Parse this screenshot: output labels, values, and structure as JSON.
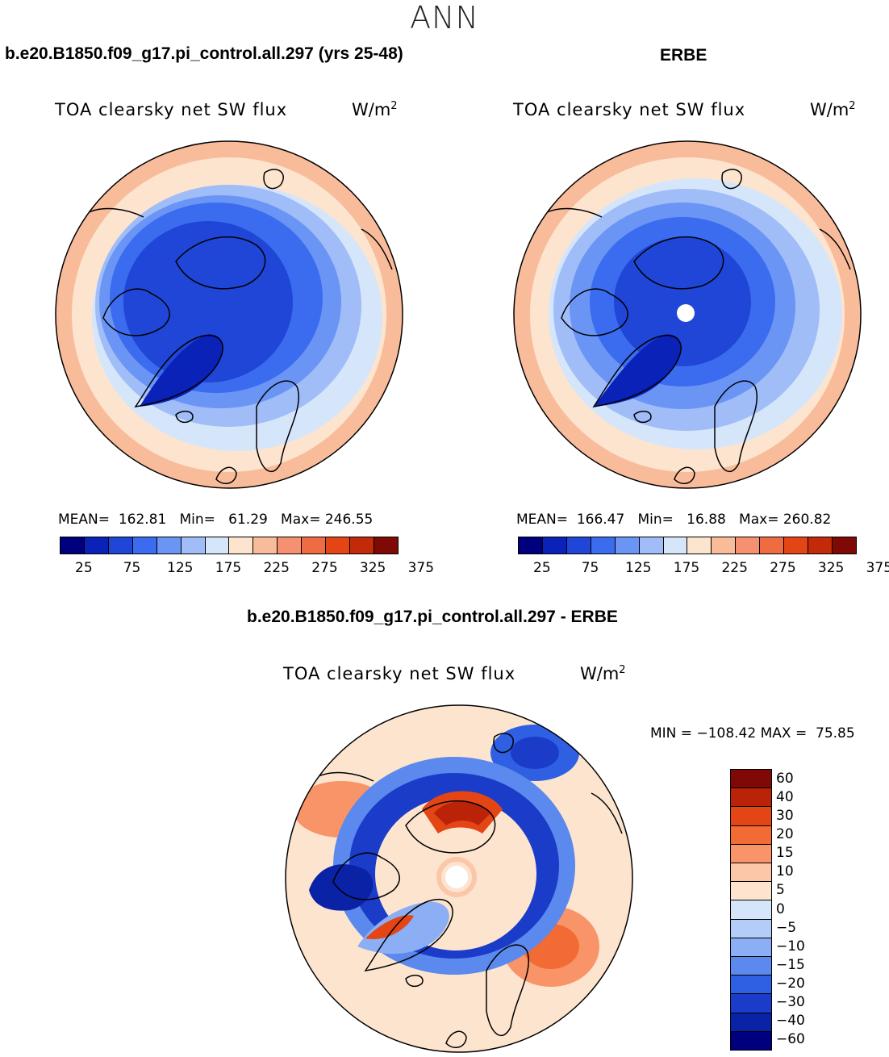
{
  "season": "ANN",
  "panels": {
    "model": {
      "case_title": "b.e20.B1850.f09_g17.pi_control.all.297 (yrs 25-48)",
      "variable": "TOA clearsky net SW flux",
      "units": "W/m",
      "units_exp": "2",
      "mean_label": "MEAN=",
      "mean": "162.81",
      "min_label": "Min=",
      "min": "61.29",
      "max_label": "Max=",
      "max": "246.55"
    },
    "obs": {
      "case_title": "ERBE",
      "variable": "TOA clearsky net SW flux",
      "units": "W/m",
      "units_exp": "2",
      "mean_label": "MEAN=",
      "mean": "166.47",
      "min_label": "Min=",
      "min": "16.88",
      "max_label": "Max=",
      "max": "260.82"
    },
    "diff": {
      "case_title": "b.e20.B1850.f09_g17.pi_control.all.297 - ERBE",
      "variable": "TOA clearsky net SW flux",
      "units": "W/m",
      "units_exp": "2",
      "min_label": "MIN =",
      "min": "−108.42",
      "max_label": "MAX =",
      "max": "75.85"
    }
  },
  "colorbars": {
    "abs_colors": [
      "#00007f",
      "#0a22b8",
      "#1f46d6",
      "#3b6cf0",
      "#6a95f5",
      "#a0bdf8",
      "#d5e6fb",
      "#fde4cf",
      "#f9bc9b",
      "#f59170",
      "#ef6b42",
      "#e44515",
      "#c32a0a",
      "#7f0a05"
    ],
    "abs_ticks": [
      "25",
      "75",
      "125",
      "175",
      "225",
      "275",
      "325",
      "375"
    ],
    "diff_colors": [
      "#7f0a05",
      "#bb2308",
      "#e44515",
      "#f26a34",
      "#f89468",
      "#fbc7a8",
      "#fde4cf",
      "#d5e6fb",
      "#b4cdf8",
      "#8caef4",
      "#5b89ee",
      "#2f5fe3",
      "#1a3cc9",
      "#0a22a6",
      "#00007f"
    ],
    "diff_ticks": [
      "60",
      "40",
      "30",
      "20",
      "15",
      "10",
      "5",
      "0",
      "−5",
      "−10",
      "−15",
      "−20",
      "−30",
      "−40",
      "−60"
    ]
  },
  "chart_data": {
    "type": "heatmap",
    "title": "ANN",
    "projection": "north polar stereographic",
    "maps": [
      {
        "name": "model",
        "variable": "TOA clearsky net SW flux",
        "units": "W/m2",
        "mean": 162.81,
        "min": 61.29,
        "max": 246.55,
        "levels": [
          25,
          50,
          75,
          100,
          125,
          150,
          175,
          200,
          225,
          250,
          275,
          300,
          325,
          350,
          375
        ]
      },
      {
        "name": "ERBE",
        "variable": "TOA clearsky net SW flux",
        "units": "W/m2",
        "mean": 166.47,
        "min": 16.88,
        "max": 260.82,
        "levels": [
          25,
          50,
          75,
          100,
          125,
          150,
          175,
          200,
          225,
          250,
          275,
          300,
          325,
          350,
          375
        ]
      },
      {
        "name": "model - ERBE",
        "variable": "TOA clearsky net SW flux",
        "units": "W/m2",
        "min": -108.42,
        "max": 75.85,
        "levels": [
          -60,
          -40,
          -30,
          -20,
          -15,
          -10,
          -5,
          0,
          5,
          10,
          15,
          20,
          30,
          40,
          60
        ]
      }
    ]
  }
}
